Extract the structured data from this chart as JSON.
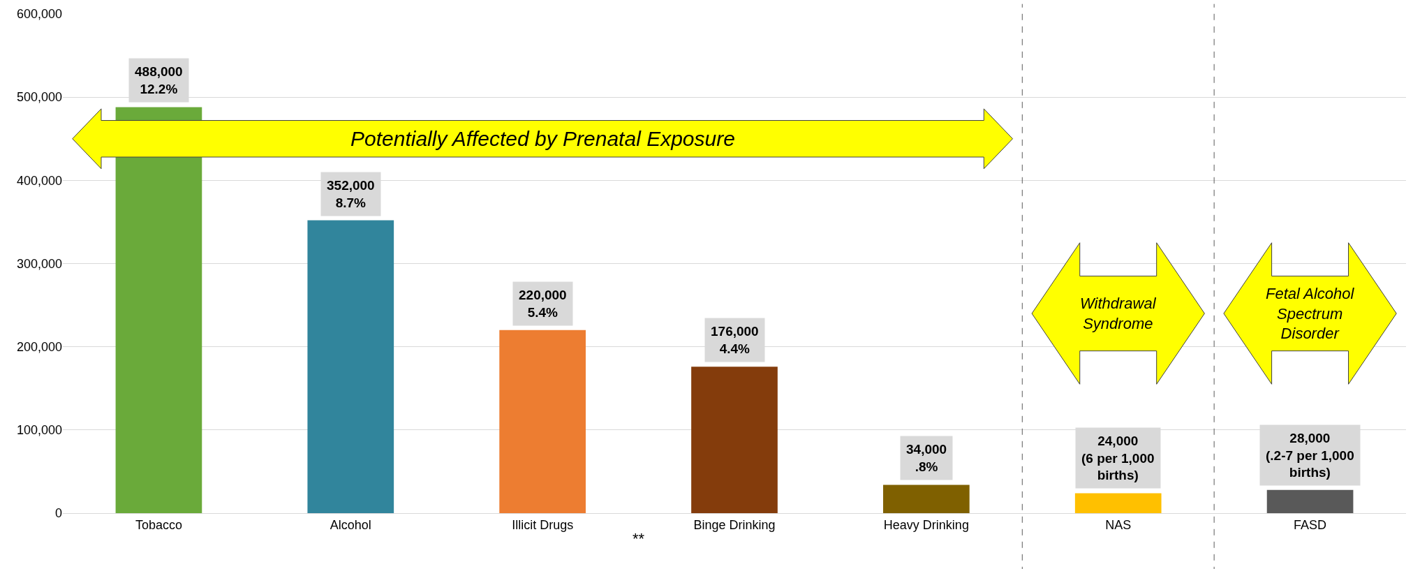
{
  "chart_data": {
    "type": "bar",
    "categories": [
      "Tobacco",
      "Alcohol",
      "Illicit Drugs",
      "Binge Drinking",
      "Heavy Drinking",
      "NAS",
      "FASD"
    ],
    "values": [
      488000,
      352000,
      220000,
      176000,
      34000,
      24000,
      28000
    ],
    "colors": [
      "#6aaa3a",
      "#31859c",
      "#ed7d31",
      "#843c0c",
      "#7f6000",
      "#ffc000",
      "#595959"
    ],
    "value_labels": [
      "488,000\n12.2%",
      "352,000\n8.7%",
      "220,000\n5.4%",
      "176,000\n4.4%",
      "34,000\n.8%",
      "24,000\n(6 per 1,000\nbirths)",
      "28,000\n(.2-7 per 1,000\nbirths)"
    ],
    "ylim": [
      0,
      600000
    ],
    "yticks": [
      {
        "value": 0,
        "label": "0"
      },
      {
        "value": 100000,
        "label": "100,000"
      },
      {
        "value": 200000,
        "label": "200,000"
      },
      {
        "value": 300000,
        "label": "300,000"
      },
      {
        "value": 400000,
        "label": "400,000"
      },
      {
        "value": 500000,
        "label": "500,000"
      },
      {
        "value": 600000,
        "label": "600,000"
      }
    ],
    "annotations": [
      "Potentially Affected by Prenatal Exposure",
      "Withdrawal Syndrome",
      "Fetal Alcohol Spectrum Disorder",
      "**"
    ],
    "grid": "y"
  }
}
